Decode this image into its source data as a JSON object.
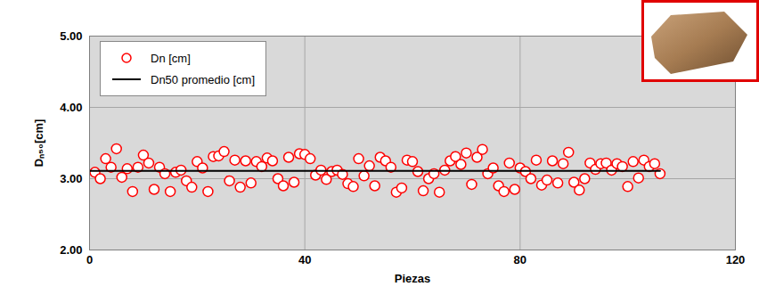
{
  "chart_data": {
    "type": "scatter",
    "x_label": "Piezas",
    "y_label": "Dₙ₅₀[cm]",
    "xlim": [
      0,
      120
    ],
    "xticks": [
      0,
      40,
      80,
      120
    ],
    "ylim": [
      2,
      5
    ],
    "yticks": [
      {
        "value": 2,
        "label": "2.00"
      },
      {
        "value": 3,
        "label": "3.00"
      },
      {
        "value": 4,
        "label": "4.00"
      },
      {
        "value": 5,
        "label": "5.00"
      }
    ],
    "grid": true,
    "legend": "upper left",
    "series": [
      {
        "name": "Dn [cm]",
        "type": "scatter",
        "marker": "circle",
        "color": "#ff0000",
        "x": [
          1,
          2,
          3,
          4,
          5,
          6,
          7,
          8,
          9,
          10,
          11,
          12,
          13,
          14,
          15,
          16,
          17,
          18,
          19,
          20,
          21,
          22,
          23,
          24,
          25,
          26,
          27,
          28,
          29,
          30,
          31,
          32,
          33,
          34,
          35,
          36,
          37,
          38,
          39,
          40,
          41,
          42,
          43,
          44,
          45,
          46,
          47,
          48,
          49,
          50,
          51,
          52,
          53,
          54,
          55,
          56,
          57,
          58,
          59,
          60,
          61,
          62,
          63,
          64,
          65,
          66,
          67,
          68,
          69,
          70,
          71,
          72,
          73,
          74,
          75,
          76,
          77,
          78,
          79,
          80,
          81,
          82,
          83,
          84,
          85,
          86,
          87,
          88,
          89,
          90,
          91,
          92,
          93,
          94,
          95,
          96,
          97,
          98,
          99,
          100,
          101,
          102,
          103,
          104,
          105,
          106
        ],
        "values": [
          3.09,
          3.0,
          3.28,
          3.16,
          3.42,
          3.02,
          3.14,
          2.82,
          3.16,
          3.33,
          3.22,
          2.85,
          3.16,
          3.07,
          2.82,
          3.09,
          3.12,
          2.97,
          2.88,
          3.24,
          3.15,
          2.82,
          3.31,
          3.32,
          3.38,
          2.97,
          3.26,
          2.88,
          3.25,
          2.94,
          3.24,
          3.17,
          3.29,
          3.25,
          3.0,
          2.9,
          3.3,
          2.95,
          3.35,
          3.34,
          3.28,
          3.05,
          3.12,
          2.99,
          3.1,
          3.12,
          3.06,
          2.93,
          2.89,
          3.28,
          3.04,
          3.18,
          2.9,
          3.3,
          3.25,
          3.16,
          2.81,
          2.87,
          3.26,
          3.24,
          3.1,
          2.83,
          3.0,
          3.07,
          2.81,
          3.12,
          3.25,
          3.31,
          3.2,
          3.36,
          2.92,
          3.3,
          3.41,
          3.07,
          3.15,
          2.9,
          2.82,
          3.22,
          2.85,
          3.15,
          3.1,
          3.0,
          3.26,
          2.91,
          2.98,
          3.25,
          2.94,
          3.21,
          3.37,
          2.95,
          2.84,
          3.0,
          3.22,
          3.13,
          3.21,
          3.22,
          3.12,
          3.21,
          3.17,
          2.89,
          3.24,
          3.01,
          3.26,
          3.17,
          3.21,
          3.07
        ]
      },
      {
        "name": "Dn50 promedio [cm]",
        "type": "line",
        "line_style": "solid",
        "color": "#000000",
        "x": [
          0,
          106
        ],
        "values": [
          3.11,
          3.11
        ]
      }
    ]
  }
}
